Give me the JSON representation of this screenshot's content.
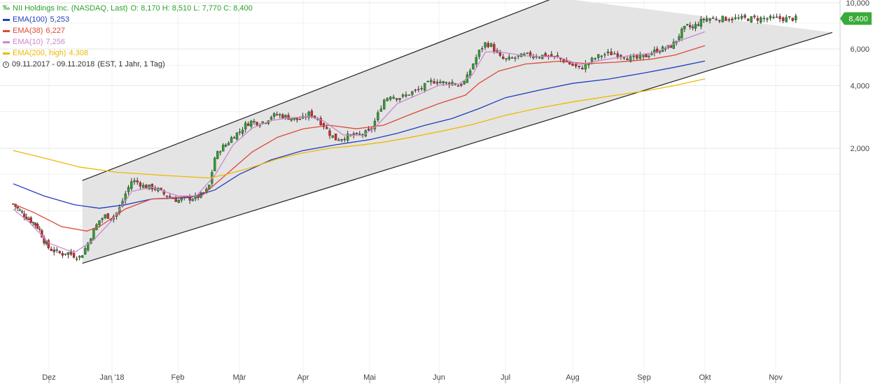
{
  "header": {
    "instrument": "NII Holdings Inc. (NASDAQ, Last)",
    "ohlc": "O: 8,170  H: 8,510  L: 7,770  C: 8,400",
    "period": "09.11.2017 - 09.11.2018",
    "period_note": "(EST, 1 Jahr, 1 Tag)"
  },
  "legend": [
    {
      "name": "EMA(100)",
      "value": "5,253",
      "color": "#1f3fbf"
    },
    {
      "name": "EMA(38)",
      "value": "6,227",
      "color": "#e0483a"
    },
    {
      "name": "EMA(10)",
      "value": "7,256",
      "color": "#cc88cc"
    },
    {
      "name": "EMA(200, high)",
      "value": "4,308",
      "color": "#f0b800"
    }
  ],
  "colors": {
    "up": "#2ca02c",
    "down": "#d62728",
    "channel_fill": "#e4e4e4",
    "last_price_bg": "#3aaa3a"
  },
  "chart_data": {
    "type": "candlestick",
    "scale": "log",
    "ylim": [
      0.5,
      10
    ],
    "y_ticks": [
      {
        "value": 10,
        "label": "10,000"
      },
      {
        "value": 6,
        "label": "6,000"
      },
      {
        "value": 4,
        "label": "4,000"
      },
      {
        "value": 2,
        "label": "2,000"
      }
    ],
    "last_price": {
      "value": 8.4,
      "label": "8,400"
    },
    "x_labels": [
      "Dez",
      "Jan '18",
      "Feb",
      "Mär",
      "Apr",
      "Mai",
      "Jun",
      "Jul",
      "Aug",
      "Sep",
      "Okt",
      "Nov"
    ],
    "x_label_months": [
      1,
      2,
      3,
      4,
      5,
      6,
      7,
      8,
      9,
      10,
      11,
      12
    ],
    "x_start_month": 0.27,
    "x_end_month": 12.3,
    "channel": {
      "upper": [
        [
          1.53,
          1.4
        ],
        [
          8.74,
          10.6
        ]
      ],
      "lower": [
        [
          1.53,
          0.56
        ],
        [
          12.8,
          7.2
        ]
      ]
    },
    "close": [
      [
        0.27,
        1.08
      ],
      [
        0.4,
        1.0
      ],
      [
        0.55,
        0.93
      ],
      [
        0.7,
        0.87
      ],
      [
        0.8,
        0.82
      ],
      [
        0.9,
        0.72
      ],
      [
        1.0,
        0.66
      ],
      [
        1.1,
        0.64
      ],
      [
        1.2,
        0.62
      ],
      [
        1.3,
        0.63
      ],
      [
        1.4,
        0.61
      ],
      [
        1.5,
        0.6
      ],
      [
        1.6,
        0.68
      ],
      [
        1.7,
        0.8
      ],
      [
        1.8,
        0.9
      ],
      [
        1.9,
        0.95
      ],
      [
        2.0,
        0.93
      ],
      [
        2.1,
        1.0
      ],
      [
        2.2,
        1.2
      ],
      [
        2.3,
        1.4
      ],
      [
        2.4,
        1.37
      ],
      [
        2.5,
        1.3
      ],
      [
        2.6,
        1.3
      ],
      [
        2.7,
        1.26
      ],
      [
        2.8,
        1.2
      ],
      [
        2.9,
        1.16
      ],
      [
        3.0,
        1.12
      ],
      [
        3.1,
        1.14
      ],
      [
        3.2,
        1.15
      ],
      [
        3.3,
        1.16
      ],
      [
        3.4,
        1.2
      ],
      [
        3.5,
        1.28
      ],
      [
        3.6,
        1.8
      ],
      [
        3.7,
        2.0
      ],
      [
        3.8,
        2.1
      ],
      [
        3.9,
        2.3
      ],
      [
        4.0,
        2.4
      ],
      [
        4.1,
        2.6
      ],
      [
        4.2,
        2.7
      ],
      [
        4.3,
        2.65
      ],
      [
        4.4,
        2.7
      ],
      [
        4.5,
        2.85
      ],
      [
        4.6,
        2.9
      ],
      [
        4.7,
        2.85
      ],
      [
        4.8,
        2.8
      ],
      [
        4.9,
        2.75
      ],
      [
        5.0,
        2.78
      ],
      [
        5.1,
        2.95
      ],
      [
        5.2,
        2.8
      ],
      [
        5.3,
        2.6
      ],
      [
        5.4,
        2.35
      ],
      [
        5.5,
        2.2
      ],
      [
        5.6,
        2.25
      ],
      [
        5.7,
        2.3
      ],
      [
        5.8,
        2.3
      ],
      [
        5.9,
        2.35
      ],
      [
        6.0,
        2.4
      ],
      [
        6.1,
        2.8
      ],
      [
        6.2,
        3.4
      ],
      [
        6.3,
        3.6
      ],
      [
        6.4,
        3.5
      ],
      [
        6.5,
        3.55
      ],
      [
        6.6,
        3.7
      ],
      [
        6.7,
        3.8
      ],
      [
        6.8,
        4.0
      ],
      [
        6.9,
        4.2
      ],
      [
        7.0,
        4.2
      ],
      [
        7.1,
        4.1
      ],
      [
        7.2,
        4.15
      ],
      [
        7.3,
        4.0
      ],
      [
        7.4,
        4.2
      ],
      [
        7.5,
        5.0
      ],
      [
        7.6,
        5.8
      ],
      [
        7.7,
        6.4
      ],
      [
        7.8,
        6.2
      ],
      [
        7.9,
        5.5
      ],
      [
        8.0,
        5.3
      ],
      [
        8.1,
        5.4
      ],
      [
        8.2,
        5.5
      ],
      [
        8.3,
        5.6
      ],
      [
        8.4,
        5.6
      ],
      [
        8.5,
        5.55
      ],
      [
        8.6,
        5.6
      ],
      [
        8.7,
        5.5
      ],
      [
        8.8,
        5.4
      ],
      [
        8.9,
        5.2
      ],
      [
        9.0,
        5.0
      ],
      [
        9.1,
        4.8
      ],
      [
        9.2,
        5.1
      ],
      [
        9.3,
        5.4
      ],
      [
        9.4,
        5.6
      ],
      [
        9.5,
        5.7
      ],
      [
        9.6,
        5.7
      ],
      [
        9.7,
        5.6
      ],
      [
        9.8,
        5.4
      ],
      [
        9.9,
        5.4
      ],
      [
        10.0,
        5.5
      ],
      [
        10.1,
        5.7
      ],
      [
        10.2,
        5.9
      ],
      [
        10.3,
        6.0
      ],
      [
        10.4,
        6.1
      ],
      [
        10.5,
        6.4
      ],
      [
        10.6,
        7.2
      ],
      [
        10.7,
        7.7
      ],
      [
        10.8,
        7.6
      ],
      [
        10.9,
        8.0
      ],
      [
        11.0,
        8.4
      ]
    ],
    "ema": [
      {
        "name": "EMA(100)",
        "color": "#1f3fbf",
        "points": [
          [
            0.27,
            1.35
          ],
          [
            0.9,
            1.18
          ],
          [
            1.4,
            1.07
          ],
          [
            1.8,
            1.03
          ],
          [
            2.2,
            1.07
          ],
          [
            2.6,
            1.14
          ],
          [
            3.2,
            1.16
          ],
          [
            3.6,
            1.26
          ],
          [
            4.0,
            1.5
          ],
          [
            4.5,
            1.76
          ],
          [
            5.0,
            1.95
          ],
          [
            5.5,
            2.08
          ],
          [
            6.0,
            2.2
          ],
          [
            6.4,
            2.36
          ],
          [
            6.8,
            2.58
          ],
          [
            7.2,
            2.78
          ],
          [
            7.6,
            3.1
          ],
          [
            8.0,
            3.5
          ],
          [
            8.5,
            3.8
          ],
          [
            9.0,
            4.1
          ],
          [
            9.5,
            4.3
          ],
          [
            10.0,
            4.6
          ],
          [
            10.5,
            4.9
          ],
          [
            11.0,
            5.25
          ]
        ]
      },
      {
        "name": "EMA(38)",
        "color": "#e0483a",
        "points": [
          [
            0.27,
            1.08
          ],
          [
            0.7,
            0.98
          ],
          [
            1.2,
            0.84
          ],
          [
            1.6,
            0.8
          ],
          [
            1.8,
            0.84
          ],
          [
            2.2,
            1.02
          ],
          [
            2.6,
            1.14
          ],
          [
            3.0,
            1.16
          ],
          [
            3.4,
            1.19
          ],
          [
            3.6,
            1.34
          ],
          [
            3.9,
            1.6
          ],
          [
            4.2,
            1.92
          ],
          [
            4.6,
            2.26
          ],
          [
            5.0,
            2.48
          ],
          [
            5.4,
            2.58
          ],
          [
            5.8,
            2.48
          ],
          [
            6.2,
            2.58
          ],
          [
            6.6,
            2.92
          ],
          [
            7.0,
            3.28
          ],
          [
            7.4,
            3.6
          ],
          [
            7.6,
            4.1
          ],
          [
            7.9,
            4.7
          ],
          [
            8.3,
            5.08
          ],
          [
            8.8,
            5.24
          ],
          [
            9.2,
            5.1
          ],
          [
            9.6,
            5.18
          ],
          [
            10.1,
            5.35
          ],
          [
            10.5,
            5.6
          ],
          [
            11.0,
            6.23
          ]
        ]
      },
      {
        "name": "EMA(10)",
        "color": "#cc88cc",
        "points": [
          [
            0.27,
            1.02
          ],
          [
            0.6,
            0.88
          ],
          [
            1.0,
            0.7
          ],
          [
            1.4,
            0.63
          ],
          [
            1.7,
            0.72
          ],
          [
            2.0,
            0.9
          ],
          [
            2.3,
            1.24
          ],
          [
            2.6,
            1.3
          ],
          [
            3.0,
            1.18
          ],
          [
            3.3,
            1.18
          ],
          [
            3.6,
            1.48
          ],
          [
            3.9,
            2.08
          ],
          [
            4.2,
            2.5
          ],
          [
            4.5,
            2.72
          ],
          [
            4.8,
            2.8
          ],
          [
            5.1,
            2.84
          ],
          [
            5.3,
            2.72
          ],
          [
            5.6,
            2.32
          ],
          [
            5.9,
            2.3
          ],
          [
            6.1,
            2.56
          ],
          [
            6.4,
            3.28
          ],
          [
            6.7,
            3.62
          ],
          [
            7.0,
            4.02
          ],
          [
            7.3,
            4.08
          ],
          [
            7.5,
            4.5
          ],
          [
            7.7,
            5.8
          ],
          [
            7.9,
            5.82
          ],
          [
            8.3,
            5.56
          ],
          [
            8.8,
            5.48
          ],
          [
            9.1,
            5.04
          ],
          [
            9.4,
            5.3
          ],
          [
            9.8,
            5.58
          ],
          [
            10.2,
            5.76
          ],
          [
            10.6,
            6.6
          ],
          [
            11.0,
            7.26
          ]
        ]
      },
      {
        "name": "EMA(200, high)",
        "color": "#f0b800",
        "points": [
          [
            0.27,
            1.95
          ],
          [
            0.8,
            1.82
          ],
          [
            1.5,
            1.62
          ],
          [
            2.1,
            1.53
          ],
          [
            2.8,
            1.48
          ],
          [
            3.5,
            1.44
          ],
          [
            3.8,
            1.5
          ],
          [
            4.2,
            1.62
          ],
          [
            4.6,
            1.78
          ],
          [
            5.0,
            1.9
          ],
          [
            5.4,
            2.0
          ],
          [
            5.8,
            2.06
          ],
          [
            6.2,
            2.14
          ],
          [
            6.6,
            2.26
          ],
          [
            7.0,
            2.4
          ],
          [
            7.5,
            2.6
          ],
          [
            8.0,
            2.88
          ],
          [
            8.5,
            3.12
          ],
          [
            9.0,
            3.34
          ],
          [
            9.5,
            3.55
          ],
          [
            10.0,
            3.76
          ],
          [
            10.5,
            4.0
          ],
          [
            11.0,
            4.31
          ]
        ]
      }
    ]
  }
}
